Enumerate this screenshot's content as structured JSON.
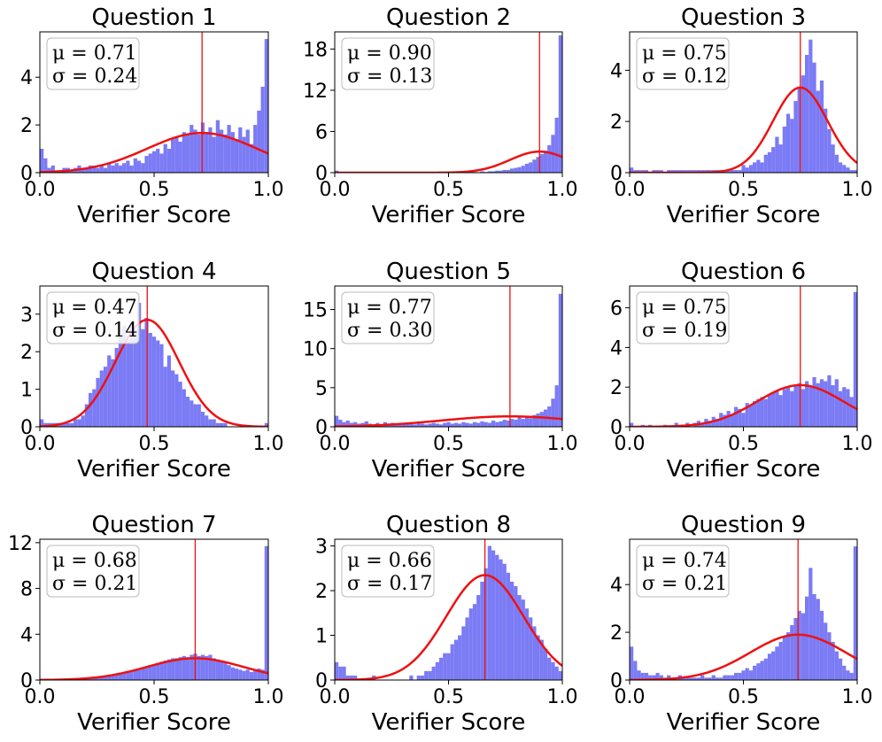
{
  "chart_data": [
    {
      "type": "bar",
      "title": "Question 1",
      "xlabel": "Verifier Score",
      "ylabel": "",
      "xlim": [
        0,
        1
      ],
      "ylim": [
        0,
        5.9
      ],
      "xticks": [
        "0.0",
        "0.5",
        "1.0"
      ],
      "yticks": [
        {
          "value": 0,
          "label": "0"
        },
        {
          "value": 2,
          "label": "2"
        },
        {
          "value": 4,
          "label": "4"
        }
      ],
      "stats": {
        "mu_text": "μ = 0.71",
        "sigma_text": "σ = 0.24"
      },
      "mean": 0.71,
      "std": 0.24,
      "bin_heights": [
        1.0,
        0.6,
        0.2,
        0.3,
        0.1,
        0.1,
        0.2,
        0.2,
        0.1,
        0.2,
        0.3,
        0.2,
        0.2,
        0.3,
        0.3,
        0.2,
        0.3,
        0.2,
        0.4,
        0.3,
        0.4,
        0.3,
        0.4,
        0.5,
        0.3,
        0.6,
        0.5,
        0.4,
        0.7,
        0.8,
        0.9,
        1.0,
        0.8,
        1.2,
        1.0,
        1.4,
        1.5,
        1.3,
        1.7,
        1.6,
        2.0,
        1.8,
        1.6,
        2.1,
        1.7,
        1.9,
        1.5,
        2.2,
        1.8,
        1.6,
        2.0,
        1.7,
        1.4,
        1.9,
        1.5,
        1.8,
        1.2,
        2.0,
        2.6,
        3.6,
        5.6
      ]
    },
    {
      "type": "bar",
      "title": "Question 2",
      "xlabel": "Verifier Score",
      "ylabel": "",
      "xlim": [
        0,
        1
      ],
      "ylim": [
        0,
        20.5
      ],
      "xticks": [
        "0.0",
        "0.5",
        "1.0"
      ],
      "yticks": [
        {
          "value": 0,
          "label": "0"
        },
        {
          "value": 6,
          "label": "6"
        },
        {
          "value": 12,
          "label": "12"
        },
        {
          "value": 18,
          "label": "18"
        }
      ],
      "stats": {
        "mu_text": "μ = 0.90",
        "sigma_text": "σ = 0.13"
      },
      "mean": 0.9,
      "std": 0.13,
      "bin_heights": [
        0.3,
        0.1,
        0,
        0,
        0,
        0.1,
        0,
        0,
        0,
        0,
        0,
        0.1,
        0,
        0,
        0,
        0,
        0,
        0,
        0.1,
        0,
        0,
        0,
        0,
        0,
        0,
        0.1,
        0,
        0,
        0,
        0,
        0.1,
        0,
        0,
        0.1,
        0,
        0,
        0.1,
        0.1,
        0,
        0.2,
        0.1,
        0.2,
        0.2,
        0.3,
        0.3,
        0.4,
        0.4,
        0.6,
        0.7,
        0.8,
        1.0,
        1.3,
        1.5,
        1.9,
        2.3,
        2.7,
        3.2,
        4.0,
        5.5,
        8.0,
        20.0
      ]
    },
    {
      "type": "bar",
      "title": "Question 3",
      "xlabel": "Verifier Score",
      "ylabel": "",
      "xlim": [
        0,
        1
      ],
      "ylim": [
        0,
        5.5
      ],
      "xticks": [
        "0.0",
        "0.5",
        "1.0"
      ],
      "yticks": [
        {
          "value": 0,
          "label": "0"
        },
        {
          "value": 2,
          "label": "2"
        },
        {
          "value": 4,
          "label": "4"
        }
      ],
      "stats": {
        "mu_text": "μ = 0.75",
        "sigma_text": "σ = 0.12"
      },
      "mean": 0.75,
      "std": 0.12,
      "bin_heights": [
        0.2,
        0.1,
        0.1,
        0.1,
        0.1,
        0,
        0.1,
        0.1,
        0.1,
        0,
        0.1,
        0.1,
        0.1,
        0.1,
        0.1,
        0.1,
        0.1,
        0.1,
        0.1,
        0.1,
        0.1,
        0.1,
        0.1,
        0.1,
        0.1,
        0.1,
        0.1,
        0.1,
        0.1,
        0.1,
        0.3,
        0.2,
        0.3,
        0.4,
        0.5,
        0.4,
        0.7,
        0.8,
        1.0,
        1.4,
        1.1,
        1.8,
        2.3,
        2.1,
        2.8,
        3.3,
        3.8,
        4.6,
        5.2,
        4.3,
        3.2,
        3.6,
        2.5,
        1.7,
        1.1,
        0.7,
        0.4,
        0.3,
        0.2,
        0.1,
        0.1
      ]
    },
    {
      "type": "bar",
      "title": "Question 4",
      "xlabel": "Verifier Score",
      "ylabel": "",
      "xlim": [
        0,
        1
      ],
      "ylim": [
        0,
        3.75
      ],
      "xticks": [
        "0.0",
        "0.5",
        "1.0"
      ],
      "yticks": [
        {
          "value": 0,
          "label": "0"
        },
        {
          "value": 1,
          "label": "1"
        },
        {
          "value": 2,
          "label": "2"
        },
        {
          "value": 3,
          "label": "3"
        }
      ],
      "stats": {
        "mu_text": "μ = 0.47",
        "sigma_text": "σ = 0.14"
      },
      "mean": 0.47,
      "std": 0.14,
      "bin_heights": [
        0.2,
        0.1,
        0.1,
        0.1,
        0.1,
        0.1,
        0.1,
        0.1,
        0.1,
        0.2,
        0.2,
        0.3,
        0.6,
        0.9,
        1.0,
        1.3,
        1.5,
        1.6,
        1.9,
        1.8,
        2.1,
        2.4,
        2.7,
        2.3,
        2.8,
        2.6,
        3.3,
        2.6,
        2.9,
        2.5,
        2.4,
        2.3,
        2.2,
        1.6,
        1.9,
        1.5,
        1.4,
        1.2,
        1.0,
        0.8,
        0.7,
        0.6,
        0.6,
        0.4,
        0.3,
        0.2,
        0.2,
        0.1,
        0.1,
        0.1,
        0,
        0,
        0,
        0,
        0,
        0,
        0,
        0,
        0,
        0,
        0.1
      ]
    },
    {
      "type": "bar",
      "title": "Question 5",
      "xlabel": "Verifier Score",
      "ylabel": "",
      "xlim": [
        0,
        1
      ],
      "ylim": [
        0,
        18
      ],
      "xticks": [
        "0.0",
        "0.5",
        "1.0"
      ],
      "yticks": [
        {
          "value": 0,
          "label": "0"
        },
        {
          "value": 5,
          "label": "5"
        },
        {
          "value": 10,
          "label": "10"
        },
        {
          "value": 15,
          "label": "15"
        }
      ],
      "stats": {
        "mu_text": "μ = 0.77",
        "sigma_text": "σ = 0.30"
      },
      "mean": 0.77,
      "std": 0.3,
      "bin_heights": [
        1.4,
        0.9,
        0.6,
        0.8,
        0.5,
        0.6,
        0.4,
        0.5,
        0.7,
        0.4,
        0.3,
        0.5,
        0.3,
        0.6,
        0.4,
        0.5,
        0.3,
        0.4,
        0.3,
        0.5,
        0.4,
        0.3,
        0.5,
        0.4,
        0.3,
        0.4,
        0.5,
        0.4,
        0.3,
        0.5,
        0.6,
        0.4,
        0.5,
        0.4,
        0.6,
        0.5,
        0.4,
        0.6,
        0.5,
        0.7,
        0.6,
        0.5,
        0.8,
        0.6,
        0.7,
        0.9,
        0.8,
        1.0,
        0.9,
        1.2,
        1.0,
        1.3,
        1.1,
        1.5,
        1.7,
        1.9,
        2.2,
        2.6,
        3.6,
        5.3,
        17.0
      ]
    },
    {
      "type": "bar",
      "title": "Question 6",
      "xlabel": "Verifier Score",
      "ylabel": "",
      "xlim": [
        0,
        1
      ],
      "ylim": [
        0,
        7.1
      ],
      "xticks": [
        "0.0",
        "0.5",
        "1.0"
      ],
      "yticks": [
        {
          "value": 0,
          "label": "0"
        },
        {
          "value": 2,
          "label": "2"
        },
        {
          "value": 4,
          "label": "4"
        },
        {
          "value": 6,
          "label": "6"
        }
      ],
      "stats": {
        "mu_text": "μ = 0.75",
        "sigma_text": "σ = 0.19"
      },
      "mean": 0.75,
      "std": 0.19,
      "bin_heights": [
        0.2,
        0,
        0,
        0.1,
        0,
        0.1,
        0,
        0,
        0,
        0.1,
        0,
        0,
        0.2,
        0.1,
        0.1,
        0.2,
        0,
        0.2,
        0.3,
        0.2,
        0.4,
        0.3,
        0.5,
        0.4,
        0.7,
        0.6,
        0.8,
        0.6,
        1.0,
        0.9,
        0.7,
        1.2,
        1.1,
        1.3,
        1.4,
        1.5,
        1.4,
        1.6,
        1.7,
        1.8,
        1.6,
        1.9,
        2.0,
        1.8,
        2.1,
        2.2,
        1.9,
        2.3,
        2.0,
        2.5,
        2.2,
        2.4,
        2.3,
        2.6,
        2.1,
        2.4,
        1.8,
        2.0,
        1.9,
        1.5,
        6.8
      ]
    },
    {
      "type": "bar",
      "title": "Question 7",
      "xlabel": "Verifier Score",
      "ylabel": "",
      "xlim": [
        0,
        1
      ],
      "ylim": [
        0,
        12.3
      ],
      "xticks": [
        "0.0",
        "0.5",
        "1.0"
      ],
      "yticks": [
        {
          "value": 0,
          "label": "0"
        },
        {
          "value": 4,
          "label": "4"
        },
        {
          "value": 8,
          "label": "8"
        },
        {
          "value": 12,
          "label": "12"
        }
      ],
      "stats": {
        "mu_text": "μ = 0.68",
        "sigma_text": "σ = 0.21"
      },
      "mean": 0.68,
      "std": 0.21,
      "bin_heights": [
        0.1,
        0,
        0.1,
        0,
        0.1,
        0.1,
        0.1,
        0.1,
        0.1,
        0.1,
        0.1,
        0.2,
        0.2,
        0.2,
        0.3,
        0.3,
        0.3,
        0.4,
        0.4,
        0.5,
        0.5,
        0.6,
        0.7,
        0.8,
        0.8,
        0.9,
        1.0,
        1.1,
        1.1,
        1.3,
        1.3,
        1.5,
        1.6,
        1.7,
        1.8,
        1.9,
        1.9,
        2.0,
        2.1,
        2.0,
        2.2,
        2.3,
        2.1,
        2.2,
        2.1,
        2.2,
        1.9,
        1.8,
        1.7,
        1.5,
        1.3,
        1.1,
        1.0,
        0.9,
        0.8,
        0.9,
        0.7,
        0.8,
        1.0,
        0.9,
        11.7
      ]
    },
    {
      "type": "bar",
      "title": "Question 8",
      "xlabel": "Verifier Score",
      "ylabel": "",
      "xlim": [
        0,
        1
      ],
      "ylim": [
        0,
        3.15
      ],
      "xticks": [
        "0.0",
        "0.5",
        "1.0"
      ],
      "yticks": [
        {
          "value": 0,
          "label": "0"
        },
        {
          "value": 1,
          "label": "1"
        },
        {
          "value": 2,
          "label": "2"
        },
        {
          "value": 3,
          "label": "3"
        }
      ],
      "stats": {
        "mu_text": "μ = 0.66",
        "sigma_text": "σ = 0.17"
      },
      "mean": 0.66,
      "std": 0.17,
      "bin_heights": [
        0.4,
        0.3,
        0.3,
        0.1,
        0.1,
        0.1,
        0,
        0,
        0,
        0,
        0.1,
        0,
        0,
        0,
        0,
        0,
        0,
        0,
        0,
        0,
        0.1,
        0,
        0.1,
        0.1,
        0.2,
        0.2,
        0.3,
        0.4,
        0.5,
        0.6,
        0.6,
        0.8,
        0.9,
        1.0,
        1.2,
        1.4,
        1.6,
        1.7,
        1.9,
        2.2,
        2.5,
        3.0,
        2.9,
        2.8,
        2.7,
        2.6,
        2.4,
        2.2,
        2.1,
        1.9,
        1.8,
        1.6,
        1.4,
        1.2,
        1.0,
        0.9,
        0.7,
        0.5,
        0.4,
        0.3,
        0.2
      ]
    },
    {
      "type": "bar",
      "title": "Question 9",
      "xlabel": "Verifier Score",
      "ylabel": "",
      "xlim": [
        0,
        1
      ],
      "ylim": [
        0,
        5.9
      ],
      "xticks": [
        "0.0",
        "0.5",
        "1.0"
      ],
      "yticks": [
        {
          "value": 0,
          "label": "0"
        },
        {
          "value": 2,
          "label": "2"
        },
        {
          "value": 4,
          "label": "4"
        }
      ],
      "stats": {
        "mu_text": "μ = 0.74",
        "sigma_text": "σ = 0.21"
      },
      "mean": 0.74,
      "std": 0.21,
      "bin_heights": [
        1.4,
        0.8,
        0.4,
        0.3,
        0.3,
        0.2,
        0.2,
        0.3,
        0.2,
        0.1,
        0.2,
        0.1,
        0.1,
        0.2,
        0.1,
        0.1,
        0.1,
        0.1,
        0.1,
        0.2,
        0.1,
        0.1,
        0.2,
        0.1,
        0.1,
        0.2,
        0.2,
        0.2,
        0.3,
        0.3,
        0.4,
        0.5,
        0.4,
        0.6,
        0.7,
        0.8,
        0.9,
        1.1,
        1.2,
        1.4,
        1.6,
        1.8,
        2.0,
        2.3,
        2.6,
        2.9,
        2.8,
        3.5,
        4.7,
        3.6,
        3.4,
        2.9,
        2.4,
        2.0,
        1.6,
        1.2,
        0.9,
        0.6,
        0.4,
        0.3,
        5.6
      ]
    }
  ]
}
